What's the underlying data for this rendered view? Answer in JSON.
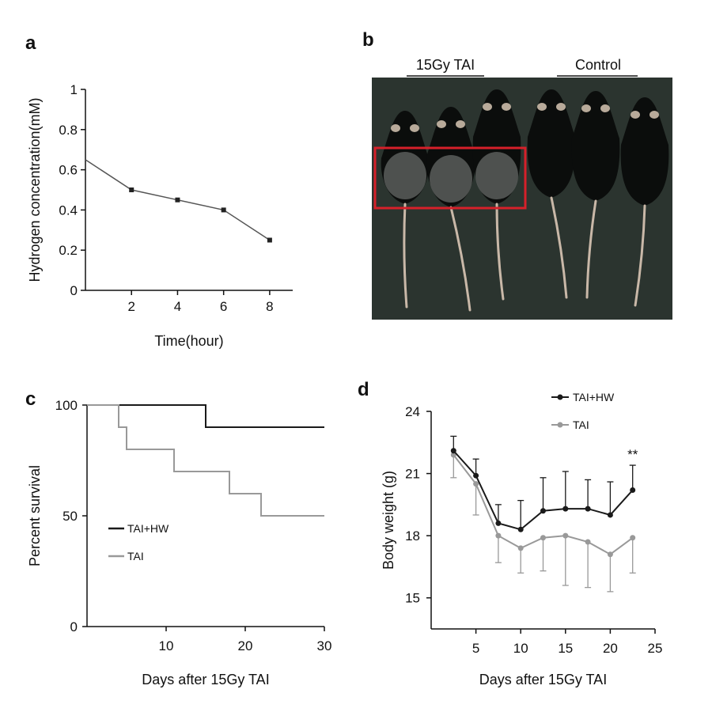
{
  "panels": {
    "a": {
      "letter": "a"
    },
    "b": {
      "letter": "b",
      "group_labels": [
        "15Gy TAI",
        "Control"
      ]
    },
    "c": {
      "letter": "c"
    },
    "d": {
      "letter": "d"
    }
  },
  "colors": {
    "tai_hw": "#1a1a1a",
    "tai": "#999999",
    "highlight_box": "#d6202a",
    "photo_bg": "#2b342f"
  },
  "chart_data": [
    {
      "panel": "a",
      "type": "line",
      "title": "",
      "xlabel": "Time(hour)",
      "ylabel": "Hydrogen concentration(mM)",
      "xlim": [
        0,
        9
      ],
      "ylim": [
        0,
        1
      ],
      "xticks": [
        "2",
        "4",
        "6",
        "8"
      ],
      "yticks": [
        "0",
        "0.2",
        "0.4",
        "0.6",
        "0.8",
        "1"
      ],
      "x": [
        0,
        2,
        4,
        6,
        8
      ],
      "y": [
        0.65,
        0.5,
        0.45,
        0.4,
        0.25
      ]
    },
    {
      "panel": "c",
      "type": "line",
      "step": true,
      "title": "",
      "xlabel": "Days after 15Gy TAI",
      "ylabel": "Percent survival",
      "xlim": [
        0,
        30
      ],
      "ylim": [
        0,
        100
      ],
      "xticks": [
        "10",
        "20",
        "30"
      ],
      "yticks": [
        "0",
        "50",
        "100"
      ],
      "legend_position": "center-left",
      "series": [
        {
          "name": "TAI+HW",
          "color": "#1a1a1a",
          "x": [
            0,
            15,
            30
          ],
          "y": [
            100,
            90,
            90
          ]
        },
        {
          "name": "TAI",
          "color": "#999999",
          "x": [
            0,
            4,
            5,
            11,
            18,
            22,
            30
          ],
          "y": [
            100,
            90,
            80,
            70,
            60,
            50,
            50
          ]
        }
      ]
    },
    {
      "panel": "d",
      "type": "line",
      "title": "",
      "xlabel": "Days after 15Gy TAI",
      "ylabel": "Body weight (g)",
      "xlim": [
        0,
        25
      ],
      "ylim": [
        13.5,
        24
      ],
      "xticks": [
        "5",
        "10",
        "15",
        "20",
        "25"
      ],
      "yticks": [
        "15",
        "18",
        "21",
        "24"
      ],
      "legend_position": "top-right",
      "annotation": "**",
      "annotation_x": 22.5,
      "series": [
        {
          "name": "TAI+HW",
          "color": "#1a1a1a",
          "x": [
            2.5,
            5,
            7.5,
            10,
            12.5,
            15,
            17.5,
            20,
            22.5
          ],
          "y": [
            22.1,
            20.9,
            18.6,
            18.3,
            19.2,
            19.3,
            19.3,
            19.0,
            20.2
          ],
          "error": [
            0.7,
            0.8,
            0.9,
            1.4,
            1.6,
            1.8,
            1.4,
            1.6,
            1.2
          ]
        },
        {
          "name": "TAI",
          "color": "#999999",
          "x": [
            2.5,
            5,
            7.5,
            10,
            12.5,
            15,
            17.5,
            20,
            22.5
          ],
          "y": [
            21.9,
            20.5,
            18.0,
            17.4,
            17.9,
            18.0,
            17.7,
            17.1,
            17.9
          ],
          "error": [
            1.1,
            1.5,
            1.3,
            1.2,
            1.6,
            2.4,
            2.2,
            1.8,
            1.7
          ]
        }
      ]
    }
  ]
}
